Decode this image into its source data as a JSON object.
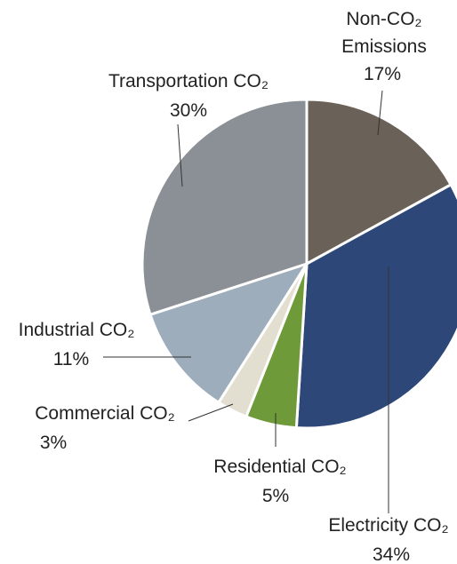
{
  "chart_data": {
    "type": "pie",
    "categories": [
      "Non-CO₂ Emissions",
      "Electricity CO₂",
      "Residential CO₂",
      "Commercial CO₂",
      "Industrial CO₂",
      "Transportation CO₂"
    ],
    "values": [
      17,
      34,
      5,
      3,
      11,
      30
    ],
    "value_labels": [
      "17%",
      "34%",
      "5%",
      "3%",
      "11%",
      "30%"
    ],
    "colors": [
      "#6a6158",
      "#2d4778",
      "#6f9a3a",
      "#e3dfd0",
      "#9eadbb",
      "#8b9096"
    ]
  }
}
